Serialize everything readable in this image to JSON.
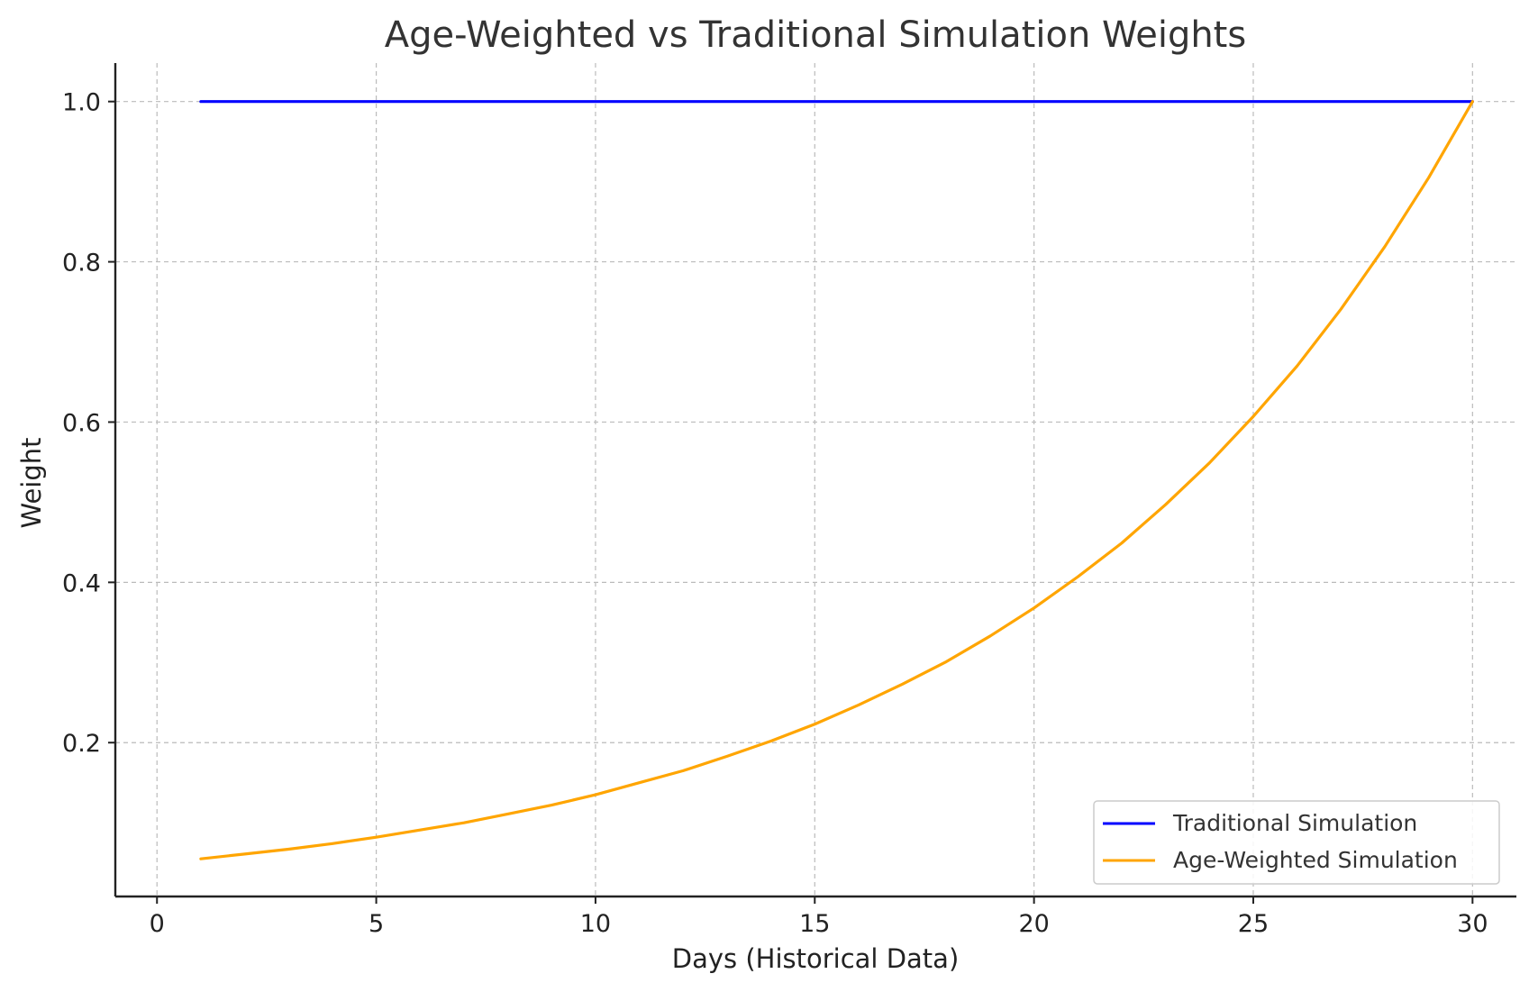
{
  "chart_data": {
    "type": "line",
    "title": "Age-Weighted vs Traditional Simulation Weights",
    "xlabel": "Days (Historical Data)",
    "ylabel": "Weight",
    "xlim": [
      -0.95,
      31.0
    ],
    "ylim": [
      0.008,
      1.048
    ],
    "xticks": [
      0,
      5,
      10,
      15,
      20,
      25,
      30
    ],
    "xtick_labels": [
      "0",
      "5",
      "10",
      "15",
      "20",
      "25",
      "30"
    ],
    "yticks": [
      0.2,
      0.4,
      0.6,
      0.8,
      1.0
    ],
    "ytick_labels": [
      "0.2",
      "0.4",
      "0.6",
      "0.8",
      "1.0"
    ],
    "grid": true,
    "legend_position": "bottom-right",
    "x": [
      1,
      2,
      3,
      4,
      5,
      6,
      7,
      8,
      9,
      10,
      11,
      12,
      13,
      14,
      15,
      16,
      17,
      18,
      19,
      20,
      21,
      22,
      23,
      24,
      25,
      26,
      27,
      28,
      29,
      30
    ],
    "series": [
      {
        "name": "Traditional Simulation",
        "color": "#0000ff",
        "values": [
          1,
          1,
          1,
          1,
          1,
          1,
          1,
          1,
          1,
          1,
          1,
          1,
          1,
          1,
          1,
          1,
          1,
          1,
          1,
          1,
          1,
          1,
          1,
          1,
          1,
          1,
          1,
          1,
          1,
          1
        ]
      },
      {
        "name": "Age-Weighted Simulation",
        "color": "#ffa500",
        "values": [
          0.055,
          0.061,
          0.067,
          0.074,
          0.082,
          0.091,
          0.1,
          0.111,
          0.122,
          0.135,
          0.15,
          0.165,
          0.183,
          0.202,
          0.223,
          0.247,
          0.273,
          0.301,
          0.333,
          0.368,
          0.407,
          0.449,
          0.497,
          0.549,
          0.607,
          0.67,
          0.741,
          0.819,
          0.905,
          1.0
        ]
      }
    ]
  }
}
